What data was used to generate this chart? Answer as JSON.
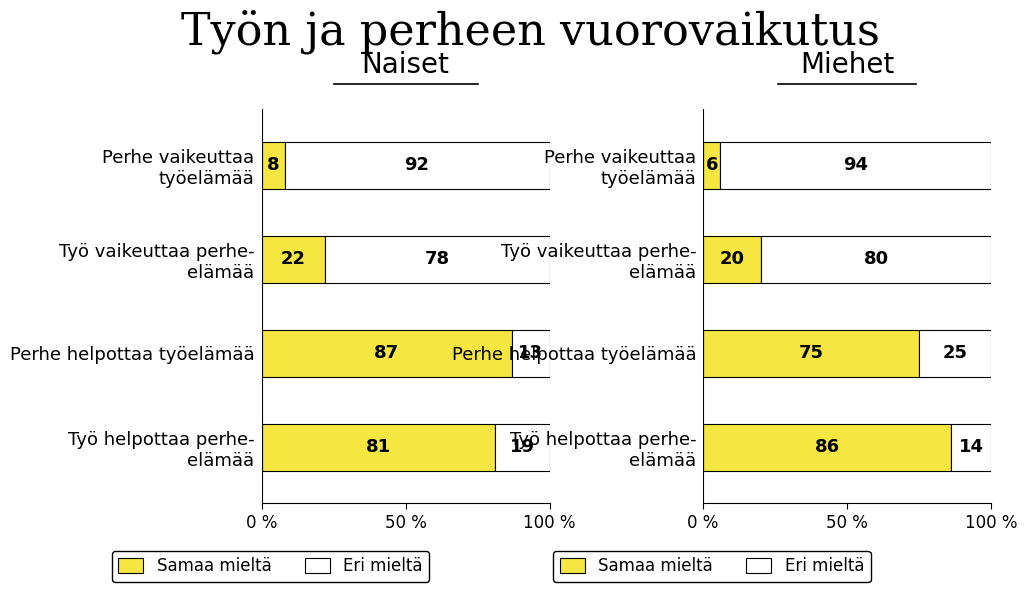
{
  "title": "Työn ja perheen vuorovaikutus",
  "title_fontsize": 32,
  "left_header": "Naiset",
  "right_header": "Miehet",
  "header_fontsize": 20,
  "naiset": {
    "categories": [
      "Perhe vaikeuttaa\ntyöelämää",
      "Työ vaikeuttaa perhe-\nelämää",
      "Perhe helpottaa työelämää",
      "Työ helpottaa perhe-\nelämää"
    ],
    "samaa": [
      8,
      22,
      87,
      81
    ],
    "eri": [
      92,
      78,
      13,
      19
    ]
  },
  "miehet": {
    "categories": [
      "Perhe vaikeuttaa\ntyöelämää",
      "Työ vaikeuttaa perhe-\nelämää",
      "Perhe helpottaa työelämää",
      "Työ helpottaa perhe-\nelämää"
    ],
    "samaa": [
      6,
      20,
      75,
      86
    ],
    "eri": [
      94,
      80,
      25,
      14
    ]
  },
  "color_samaa": "#f5e642",
  "color_eri": "#ffffff",
  "bar_edgecolor": "#000000",
  "bar_height": 0.5,
  "xlim": [
    0,
    100
  ],
  "xticks": [
    0,
    50,
    100
  ],
  "xticklabels": [
    "0 %",
    "50 %",
    "100 %"
  ],
  "legend_samaa": "Samaa mieltä",
  "legend_eri": "Eri mieltä",
  "label_fontsize": 13,
  "category_fontsize": 13,
  "value_fontsize": 13,
  "axis_fontsize": 12,
  "background_color": "#ffffff"
}
